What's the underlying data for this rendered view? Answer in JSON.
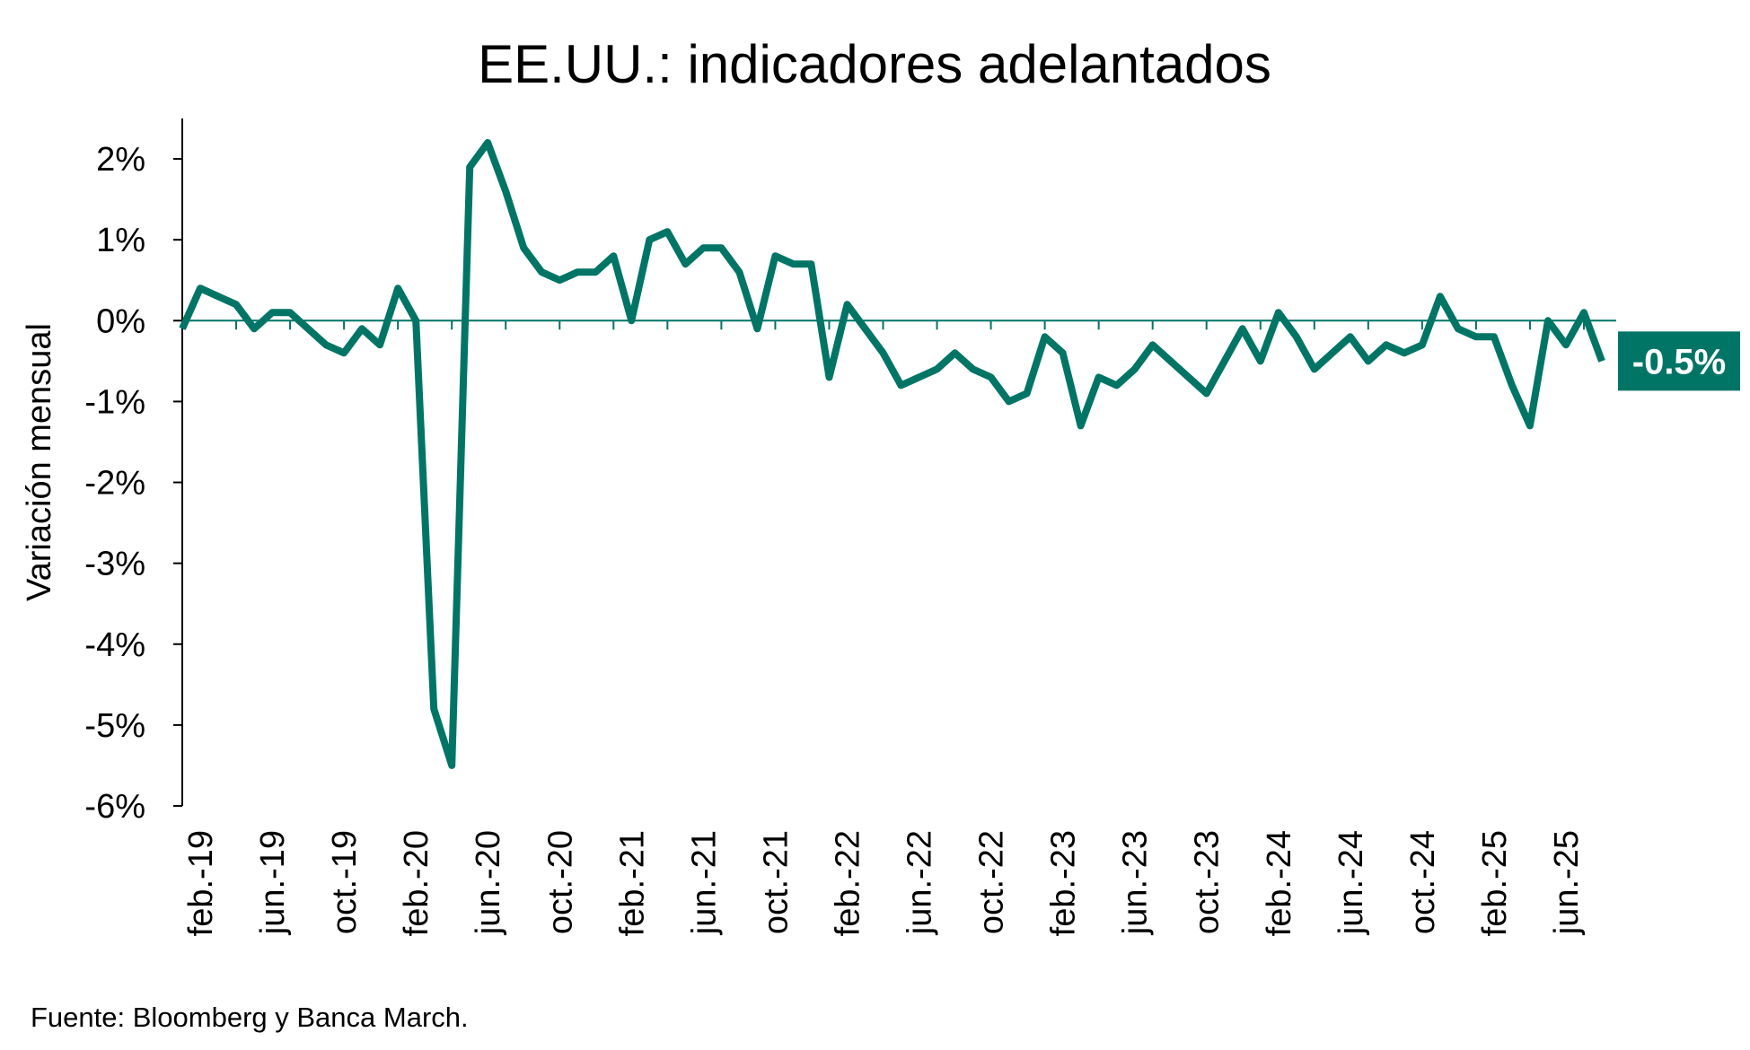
{
  "chart_data": {
    "type": "line",
    "title": "EE.UU.: indicadores adelantados",
    "xlabel": "",
    "ylabel": "Variación mensual",
    "source": "Fuente: Bloomberg y Banca March.",
    "ylim": [
      -6,
      2.5
    ],
    "yticks": [
      2,
      1,
      0,
      -1,
      -2,
      -3,
      -4,
      -5,
      -6
    ],
    "ytick_labels": [
      "2%",
      "1%",
      "0%",
      "-1%",
      "-2%",
      "-3%",
      "-4%",
      "-5%",
      "-6%"
    ],
    "x_tick_labels": [
      "feb.-19",
      "jun.-19",
      "oct.-19",
      "feb.-20",
      "jun.-20",
      "oct.-20",
      "feb.-21",
      "jun.-21",
      "oct.-21",
      "feb.-22",
      "jun.-22",
      "oct.-22",
      "feb.-23",
      "jun.-23",
      "oct.-23",
      "feb.-24",
      "jun.-24",
      "oct.-24",
      "feb.-25",
      "jun.-25"
    ],
    "grid": false,
    "color": "#007566",
    "series": [
      {
        "x": [
          "2019-01",
          "2019-02",
          "2019-03",
          "2019-04",
          "2019-05",
          "2019-06",
          "2019-07",
          "2019-08",
          "2019-09",
          "2019-10",
          "2019-11",
          "2019-12",
          "2020-01",
          "2020-02",
          "2020-03",
          "2020-04",
          "2020-05",
          "2020-06",
          "2020-07",
          "2020-08",
          "2020-09",
          "2020-10",
          "2020-11",
          "2020-12",
          "2021-01",
          "2021-02",
          "2021-03",
          "2021-04",
          "2021-05",
          "2021-06",
          "2021-07",
          "2021-08",
          "2021-09",
          "2021-10",
          "2021-11",
          "2021-12",
          "2022-01",
          "2022-02",
          "2022-03",
          "2022-04",
          "2022-05",
          "2022-06",
          "2022-07",
          "2022-08",
          "2022-09",
          "2022-10",
          "2022-11",
          "2022-12",
          "2023-01",
          "2023-02",
          "2023-03",
          "2023-04",
          "2023-05",
          "2023-06",
          "2023-07",
          "2023-08",
          "2023-09",
          "2023-10",
          "2023-11",
          "2023-12",
          "2024-01",
          "2024-02",
          "2024-03",
          "2024-04",
          "2024-05",
          "2024-06",
          "2024-07",
          "2024-08",
          "2024-09",
          "2024-10",
          "2024-11",
          "2024-12",
          "2025-01",
          "2025-02",
          "2025-03",
          "2025-04",
          "2025-05",
          "2025-06",
          "2025-07",
          "2025-08"
        ],
        "values": [
          -0.1,
          0.4,
          0.3,
          0.2,
          -0.1,
          0.1,
          0.1,
          -0.1,
          -0.3,
          -0.4,
          -0.1,
          -0.3,
          0.4,
          0.0,
          -4.8,
          -5.5,
          1.9,
          2.2,
          1.6,
          0.9,
          0.6,
          0.5,
          0.6,
          0.6,
          0.8,
          0.0,
          1.0,
          1.1,
          0.7,
          0.9,
          0.9,
          0.6,
          -0.1,
          0.8,
          0.7,
          0.7,
          -0.7,
          0.2,
          -0.1,
          -0.4,
          -0.8,
          -0.7,
          -0.6,
          -0.4,
          -0.6,
          -0.7,
          -1.0,
          -0.9,
          -0.2,
          -0.4,
          -1.3,
          -0.7,
          -0.8,
          -0.6,
          -0.3,
          -0.5,
          -0.7,
          -0.9,
          -0.5,
          -0.1,
          -0.5,
          0.1,
          -0.2,
          -0.6,
          -0.4,
          -0.2,
          -0.5,
          -0.3,
          -0.4,
          -0.3,
          0.3,
          -0.1,
          -0.2,
          -0.2,
          -0.8,
          -1.3,
          0.0,
          -0.3,
          0.1,
          -0.5
        ]
      }
    ],
    "last_value_label": "-0.5%"
  }
}
